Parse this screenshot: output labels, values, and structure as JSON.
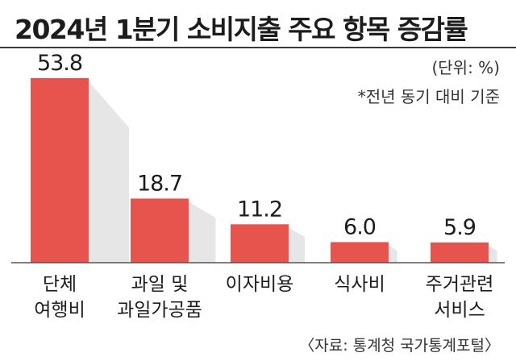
{
  "title": "2024년 1분기 소비지출 주요 항목 증감률",
  "unit_label": "(단위: %)",
  "note": "*전년 동기 대비 기준",
  "source": "〈자료: 통계청 국가통계포털〉",
  "colors": {
    "bar": "#e7544d",
    "shadow": "#e6e6e6",
    "baseline": "#555555"
  },
  "chart_data": {
    "type": "bar",
    "title": "2024년 1분기 소비지출 주요 항목 증감률",
    "categories": [
      [
        "단체",
        "여행비"
      ],
      [
        "과일 및",
        "과일가공품"
      ],
      [
        "이자비용"
      ],
      [
        "식사비"
      ],
      [
        "주거관련",
        "서비스"
      ]
    ],
    "values": [
      53.8,
      18.7,
      11.2,
      6.0,
      5.9
    ],
    "value_labels": [
      "53.8",
      "18.7",
      "11.2",
      "6.0",
      "5.9"
    ],
    "ylim": [
      0,
      53.8
    ],
    "xlabel": "",
    "ylabel": "",
    "grid": false,
    "legend": "none"
  }
}
